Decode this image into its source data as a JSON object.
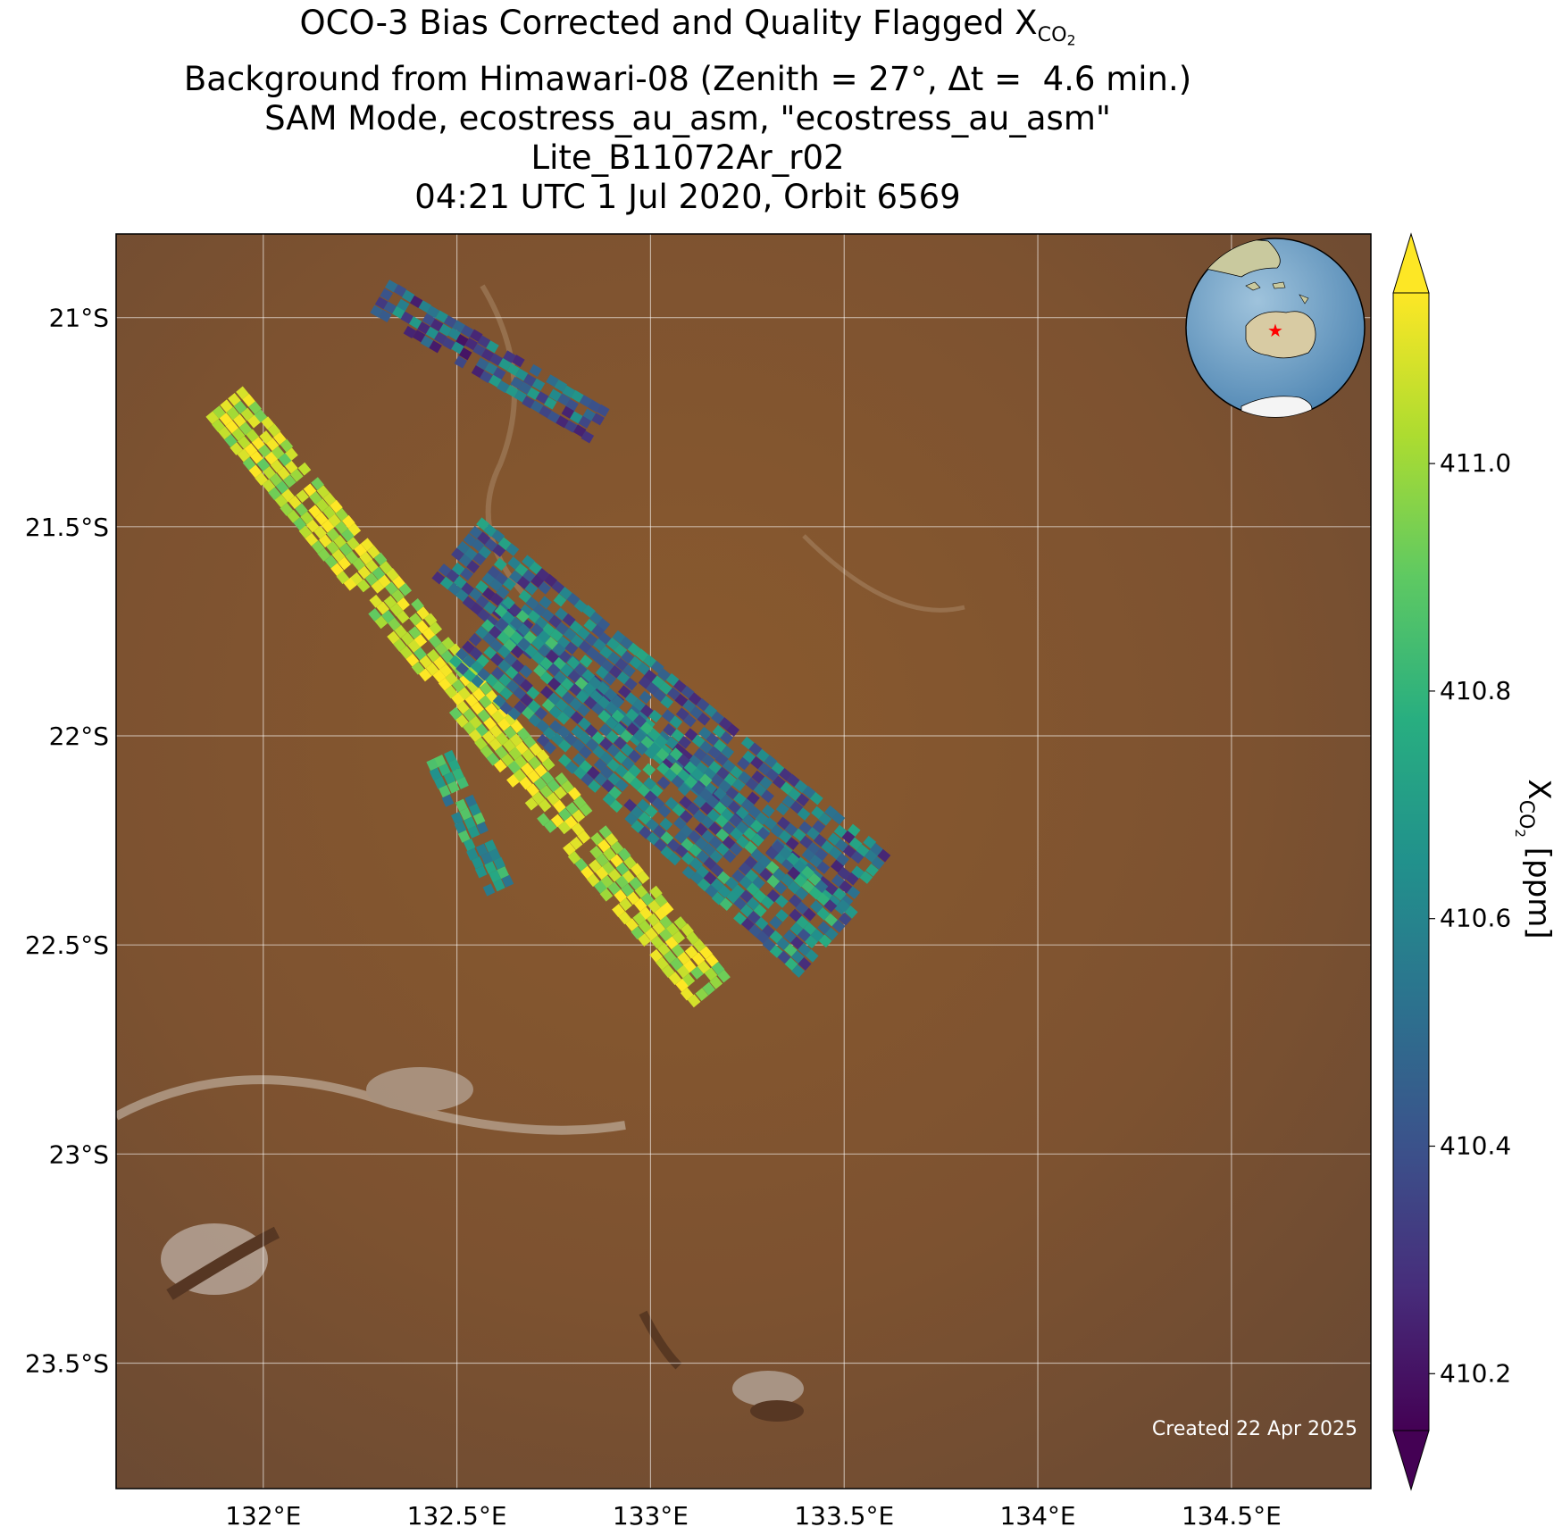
{
  "title": {
    "line1_prefix": "OCO-3 Bias Corrected and Quality Flagged X",
    "line1_sub": "CO",
    "line1_sub2": "2",
    "line2": "Background from Himawari-08 (Zenith = 27°, Δt =  4.6 min.)",
    "line3": "SAM Mode, ecostress_au_asm, \"ecostress_au_asm\"",
    "line4": "Lite_B11072Ar_r02",
    "line5": "04:21 UTC 1 Jul 2020, Orbit 6569"
  },
  "created_label": "Created 22 Apr 2025",
  "colorbar": {
    "label_prefix": "X",
    "label_sub": "CO",
    "label_sub2": "2",
    "label_suffix": " [ppm]",
    "ticks": [
      "410.2",
      "410.4",
      "410.6",
      "410.8",
      "411.0"
    ],
    "range": [
      410.15,
      411.15
    ],
    "colormap": "viridis",
    "extend": "both"
  },
  "chart_data": {
    "type": "heatmap",
    "description_type": "map",
    "lon_range": [
      131.62,
      134.86
    ],
    "lat_range": [
      -23.8,
      -20.8
    ],
    "x_ticks": [
      "132°E",
      "132.5°E",
      "133°E",
      "133.5°E",
      "134°E",
      "134.5°E"
    ],
    "x_tick_values": [
      132.0,
      132.5,
      133.0,
      133.5,
      134.0,
      134.5
    ],
    "y_ticks": [
      "21°S",
      "21.5°S",
      "22°S",
      "22.5°S",
      "23°S",
      "23.5°S"
    ],
    "y_tick_values": [
      -21.0,
      -21.5,
      -22.0,
      -22.5,
      -23.0,
      -23.5
    ],
    "grid": true,
    "value_unit": "ppm",
    "inset_globe": {
      "position": "top-right",
      "marker": "red star",
      "marker_lon": 133.0,
      "marker_lat": -22.0
    },
    "swaths": [
      {
        "name": "swath-1",
        "start_lon": 131.9,
        "start_lat": -21.2,
        "end_lon": 133.15,
        "end_lat": -22.6,
        "half_width_deg": 0.06,
        "mean_ppm": 411.05,
        "spread_ppm": 0.15
      },
      {
        "name": "swath-2",
        "start_lon": 132.5,
        "start_lat": -21.55,
        "end_lon": 133.55,
        "end_lat": -22.35,
        "half_width_deg": 0.1,
        "mean_ppm": 410.5,
        "spread_ppm": 0.25
      },
      {
        "name": "swath-3",
        "start_lon": 132.3,
        "start_lat": -20.95,
        "end_lon": 132.85,
        "end_lat": -21.25,
        "half_width_deg": 0.05,
        "mean_ppm": 410.45,
        "spread_ppm": 0.25
      },
      {
        "name": "swath-4",
        "start_lon": 132.55,
        "start_lat": -21.75,
        "end_lon": 133.45,
        "end_lat": -22.5,
        "half_width_deg": 0.12,
        "mean_ppm": 410.55,
        "spread_ppm": 0.3
      },
      {
        "name": "swath-5",
        "start_lon": 132.45,
        "start_lat": -22.05,
        "end_lon": 132.6,
        "end_lat": -22.35,
        "half_width_deg": 0.04,
        "mean_ppm": 410.7,
        "spread_ppm": 0.2
      }
    ]
  }
}
